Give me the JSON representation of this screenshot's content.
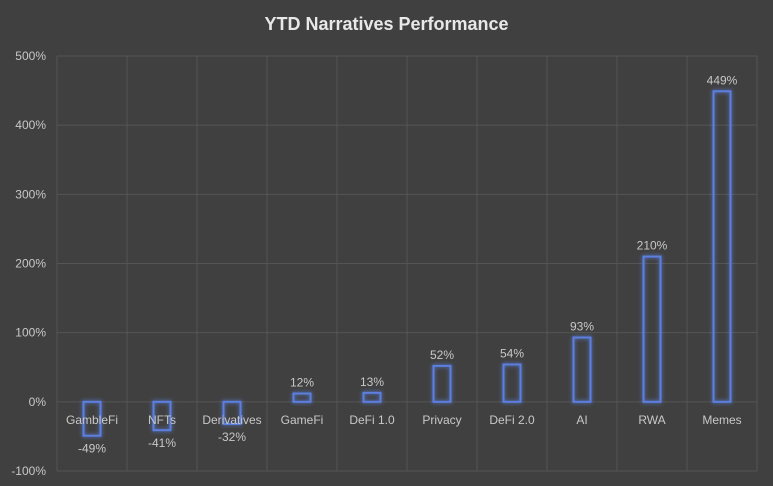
{
  "chart_data": {
    "type": "bar",
    "title": "YTD Narratives Performance",
    "categories": [
      "GambleFi",
      "NFTs",
      "Derivatives",
      "GameFi",
      "DeFi 1.0",
      "Privacy",
      "DeFi 2.0",
      "AI",
      "RWA",
      "Memes"
    ],
    "values": [
      -49,
      -41,
      -32,
      12,
      13,
      52,
      54,
      93,
      210,
      449
    ],
    "data_labels": [
      "-49%",
      "-41%",
      "-32%",
      "12%",
      "13%",
      "52%",
      "54%",
      "93%",
      "210%",
      "449%"
    ],
    "ylim": [
      -100,
      500
    ],
    "yticks": [
      -100,
      0,
      100,
      200,
      300,
      400,
      500
    ],
    "ytick_labels": [
      "-100%",
      "0%",
      "100%",
      "200%",
      "300%",
      "400%",
      "500%"
    ],
    "xlabel": "",
    "ylabel": "",
    "grid": true,
    "bar_style": "outline",
    "colors": {
      "bar_outline": "#5b7fe0",
      "bar_glow": "#3a5bd0",
      "background": "#404040",
      "grid": "#555555",
      "text": "#c8c8c8"
    }
  }
}
